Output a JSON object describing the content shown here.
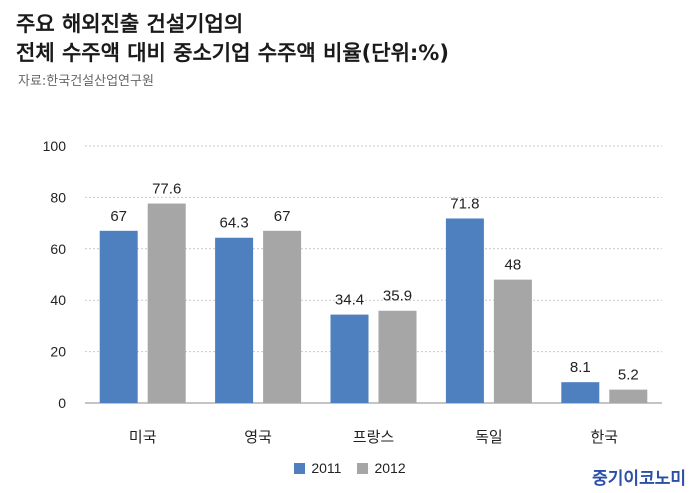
{
  "title": {
    "line1": "주요 해외진출 건설기업의",
    "line2": "전체 수주액 대비 중소기업 수주액 비율(단위:%)"
  },
  "source": "자료:한국건설산업연구원",
  "brand": "중기이코노미",
  "colors": {
    "s2011": "#4e7fbf",
    "s2012": "#a6a6a6",
    "grid": "#c9c9c9",
    "axis": "#888888"
  },
  "chart_data": {
    "type": "bar",
    "categories": [
      "미국",
      "영국",
      "프랑스",
      "독일",
      "한국"
    ],
    "series": [
      {
        "name": "2011",
        "values": [
          67,
          64.3,
          34.4,
          71.8,
          8.1
        ]
      },
      {
        "name": "2012",
        "values": [
          77.6,
          67,
          35.9,
          48,
          5.2
        ]
      }
    ],
    "y_ticks": [
      "0",
      "20",
      "40",
      "60",
      "80",
      "100"
    ],
    "ylim": [
      0,
      100
    ],
    "grid": true,
    "legend_position": "bottom",
    "data_labels": true
  }
}
